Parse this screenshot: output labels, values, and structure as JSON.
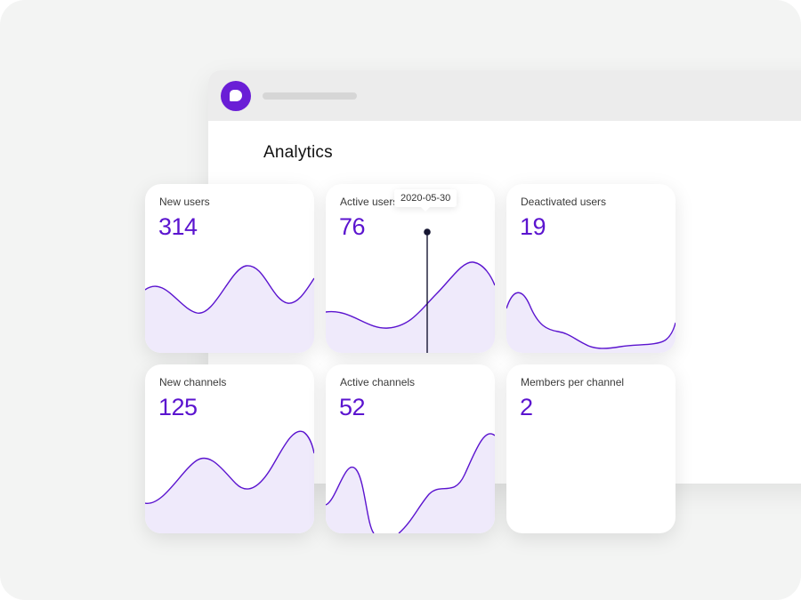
{
  "page": {
    "title": "Analytics"
  },
  "colors": {
    "accent": "#5b14cf",
    "line": "#5b14cf",
    "fill": "#efeafb",
    "logo": "#6a1ed6"
  },
  "cards": [
    {
      "label": "New users",
      "value": "314"
    },
    {
      "label": "Active users",
      "value": "76",
      "tooltip": "2020-05-30"
    },
    {
      "label": "Deactivated users",
      "value": "19"
    },
    {
      "label": "New channels",
      "value": "125"
    },
    {
      "label": "Active channels",
      "value": "52"
    },
    {
      "label": "Members per channel",
      "value": "2"
    }
  ]
}
